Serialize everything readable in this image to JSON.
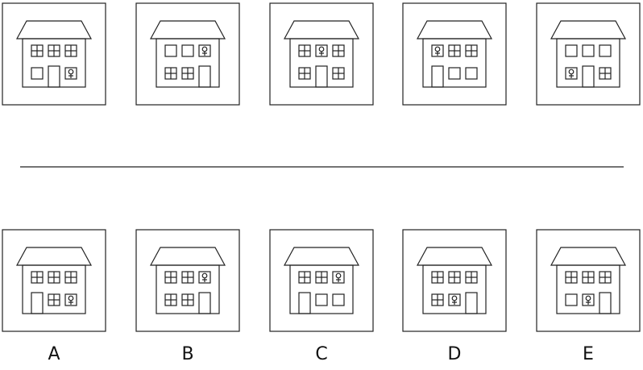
{
  "options": {
    "labels": [
      "A",
      "B",
      "C",
      "D",
      "E"
    ]
  }
}
